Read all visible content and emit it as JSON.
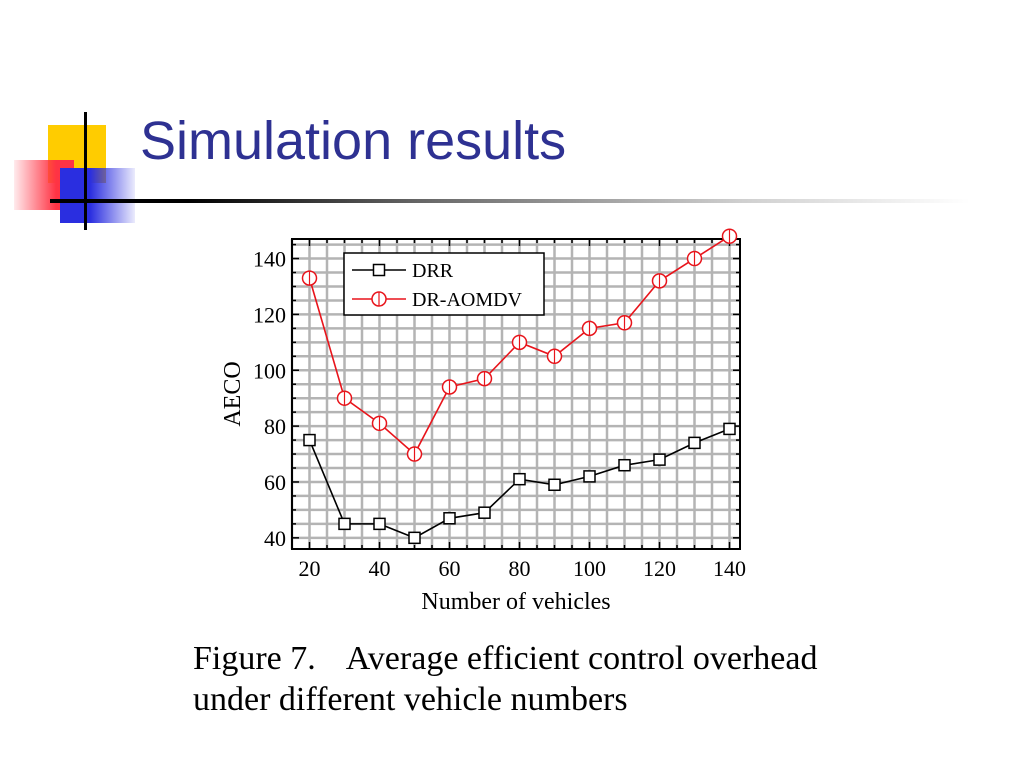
{
  "slide": {
    "title": "Simulation results"
  },
  "caption": {
    "label": "Figure 7.",
    "text": "Average efficient control overhead under different vehicle numbers"
  },
  "chart_data": {
    "type": "line",
    "title": "",
    "xlabel": "Number of vehicles",
    "ylabel": "AECO",
    "xlim": [
      15,
      143
    ],
    "ylim": [
      36,
      147
    ],
    "x_ticks": [
      20,
      40,
      60,
      80,
      100,
      120,
      140
    ],
    "y_ticks": [
      40,
      60,
      80,
      100,
      120,
      140
    ],
    "grid": true,
    "legend_position": "top-left",
    "x": [
      20,
      30,
      40,
      50,
      60,
      70,
      80,
      90,
      100,
      110,
      120,
      130,
      140
    ],
    "series": [
      {
        "name": "DRR",
        "color": "#000000",
        "marker": "square",
        "values": [
          75,
          45,
          45,
          40,
          47,
          49,
          61,
          59,
          62,
          66,
          68,
          74,
          79
        ]
      },
      {
        "name": "DR-AOMDV",
        "color": "#e8141b",
        "marker": "circle",
        "values": [
          133,
          90,
          81,
          70,
          94,
          97,
          110,
          105,
          115,
          117,
          132,
          140,
          148
        ]
      }
    ]
  }
}
